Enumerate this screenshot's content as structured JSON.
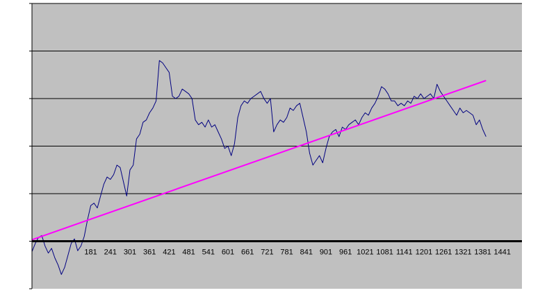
{
  "chart_data": {
    "type": "line",
    "title": "",
    "xlabel": "",
    "ylabel": "",
    "xlim": [
      1,
      1501
    ],
    "ylim": [
      -1,
      5
    ],
    "x_tick_labels": [
      "181",
      "241",
      "301",
      "361",
      "421",
      "481",
      "541",
      "601",
      "661",
      "721",
      "781",
      "841",
      "901",
      "961",
      "1021",
      "1081",
      "1141",
      "1201",
      "1261",
      "1321",
      "1381",
      "1441"
    ],
    "x_tick_values": [
      181,
      241,
      301,
      361,
      421,
      481,
      541,
      601,
      661,
      721,
      781,
      841,
      901,
      961,
      1021,
      1081,
      1141,
      1201,
      1261,
      1321,
      1381,
      1441
    ],
    "y_gridlines": [
      1,
      2,
      3,
      4,
      5
    ],
    "y_tick_labels_visible": false,
    "grid": true,
    "legend": "none",
    "plot_background": "#c0c0c0",
    "series": [
      {
        "color": "#000080",
        "x": [
          1,
          11,
          21,
          31,
          41,
          51,
          61,
          71,
          81,
          91,
          101,
          111,
          121,
          131,
          141,
          151,
          161,
          171,
          181,
          191,
          201,
          211,
          221,
          231,
          241,
          251,
          261,
          271,
          281,
          291,
          301,
          311,
          321,
          331,
          341,
          351,
          361,
          371,
          381,
          391,
          401,
          411,
          421,
          431,
          441,
          451,
          461,
          471,
          481,
          491,
          501,
          511,
          521,
          531,
          541,
          551,
          561,
          571,
          581,
          591,
          601,
          611,
          621,
          631,
          641,
          651,
          661,
          671,
          681,
          691,
          701,
          711,
          721,
          731,
          741,
          751,
          761,
          771,
          781,
          791,
          801,
          811,
          821,
          831,
          841,
          851,
          861,
          871,
          881,
          891,
          901,
          911,
          921,
          931,
          941,
          951,
          961,
          971,
          981,
          991,
          1001,
          1011,
          1021,
          1031,
          1041,
          1051,
          1061,
          1071,
          1081,
          1091,
          1101,
          1111,
          1121,
          1131,
          1141,
          1151,
          1161,
          1171,
          1181,
          1191,
          1201,
          1211,
          1221,
          1231,
          1241,
          1251,
          1261,
          1271,
          1281,
          1291,
          1301,
          1311,
          1321,
          1331,
          1341,
          1351,
          1361,
          1371,
          1381,
          1391
        ],
        "values": [
          -0.22,
          -0.05,
          0.08,
          0.12,
          -0.1,
          -0.25,
          -0.15,
          -0.35,
          -0.5,
          -0.7,
          -0.55,
          -0.3,
          -0.05,
          0.05,
          -0.2,
          -0.1,
          0.1,
          0.45,
          0.75,
          0.8,
          0.7,
          0.95,
          1.2,
          1.35,
          1.3,
          1.4,
          1.6,
          1.55,
          1.25,
          0.95,
          1.5,
          1.6,
          2.15,
          2.25,
          2.5,
          2.55,
          2.7,
          2.8,
          2.95,
          3.8,
          3.75,
          3.65,
          3.55,
          3.05,
          3.0,
          3.05,
          3.2,
          3.15,
          3.1,
          3.0,
          2.55,
          2.45,
          2.5,
          2.4,
          2.55,
          2.4,
          2.45,
          2.3,
          2.15,
          1.95,
          2.0,
          1.8,
          2.05,
          2.6,
          2.85,
          2.95,
          2.9,
          3.0,
          3.05,
          3.1,
          3.15,
          3.0,
          2.9,
          3.0,
          2.3,
          2.45,
          2.55,
          2.5,
          2.6,
          2.8,
          2.75,
          2.85,
          2.9,
          2.6,
          2.3,
          1.85,
          1.6,
          1.7,
          1.8,
          1.65,
          1.95,
          2.2,
          2.3,
          2.35,
          2.2,
          2.4,
          2.35,
          2.45,
          2.5,
          2.55,
          2.45,
          2.6,
          2.7,
          2.65,
          2.8,
          2.9,
          3.05,
          3.25,
          3.2,
          3.1,
          2.95,
          2.95,
          2.85,
          2.9,
          2.85,
          2.95,
          2.9,
          3.05,
          3.0,
          3.1,
          3.0,
          3.05,
          3.1,
          3.0,
          3.3,
          3.15,
          3.05,
          2.95,
          2.85,
          2.75,
          2.65,
          2.8,
          2.7,
          2.75,
          2.7,
          2.65,
          2.45,
          2.55,
          2.35,
          2.2
        ]
      },
      {
        "color": "#ff00ff",
        "x": [
          1,
          1391
        ],
        "values": [
          0.03,
          3.38
        ]
      }
    ]
  }
}
